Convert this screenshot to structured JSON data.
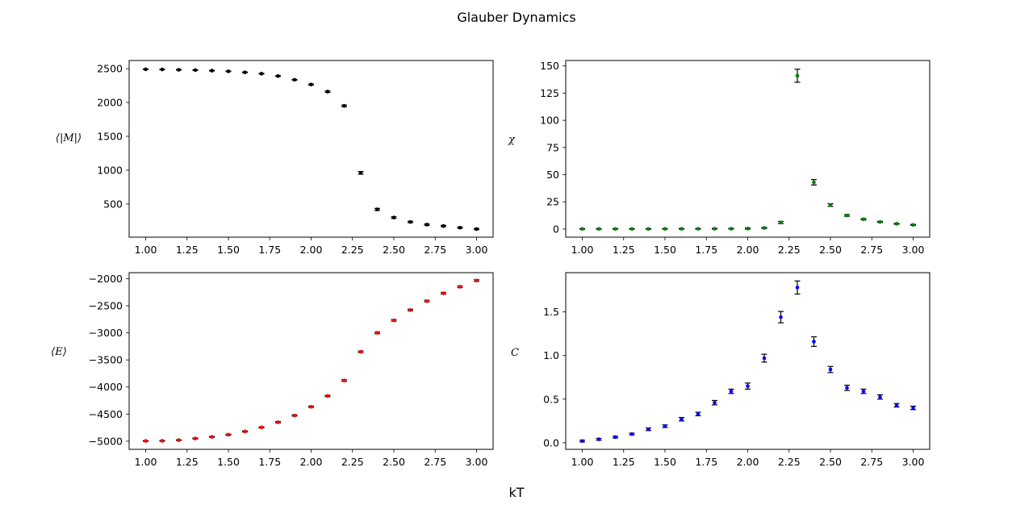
{
  "figure": {
    "title": "Glauber Dynamics",
    "xlabel": "kT"
  },
  "chart_data": [
    {
      "type": "scatter",
      "panel": "top-left",
      "ylabel": "⟨|M|⟩",
      "color": "#000000",
      "x": [
        1.0,
        1.1,
        1.2,
        1.3,
        1.4,
        1.5,
        1.6,
        1.7,
        1.8,
        1.9,
        2.0,
        2.1,
        2.2,
        2.3,
        2.4,
        2.5,
        2.6,
        2.7,
        2.8,
        2.9,
        3.0
      ],
      "values": [
        2490,
        2488,
        2483,
        2478,
        2470,
        2460,
        2445,
        2425,
        2390,
        2335,
        2265,
        2160,
        1950,
        960,
        420,
        300,
        235,
        195,
        175,
        150,
        130
      ],
      "errors": [
        5,
        5,
        5,
        5,
        5,
        5,
        5,
        5,
        5,
        5,
        8,
        10,
        12,
        20,
        15,
        12,
        10,
        10,
        10,
        10,
        10
      ],
      "xlim": [
        0.9,
        3.1
      ],
      "ylim": [
        10,
        2620
      ],
      "xticks": [
        "1.00",
        "1.25",
        "1.50",
        "1.75",
        "2.00",
        "2.25",
        "2.50",
        "2.75",
        "3.00"
      ],
      "yticks": [
        "500",
        "1000",
        "1500",
        "2000",
        "2500"
      ]
    },
    {
      "type": "scatter",
      "panel": "top-right",
      "ylabel": "χ",
      "color": "#008000",
      "x": [
        1.0,
        1.1,
        1.2,
        1.3,
        1.4,
        1.5,
        1.6,
        1.7,
        1.8,
        1.9,
        2.0,
        2.1,
        2.2,
        2.3,
        2.4,
        2.5,
        2.6,
        2.7,
        2.8,
        2.9,
        3.0
      ],
      "values": [
        0.1,
        0.1,
        0.1,
        0.1,
        0.1,
        0.15,
        0.2,
        0.2,
        0.25,
        0.3,
        0.4,
        1.0,
        6.0,
        141,
        43,
        22,
        12.5,
        9,
        6.5,
        4.8,
        3.8
      ],
      "errors": [
        0.3,
        0.3,
        0.3,
        0.3,
        0.3,
        0.3,
        0.3,
        0.3,
        0.3,
        0.3,
        0.5,
        0.5,
        1.0,
        6.0,
        2.5,
        1.2,
        0.8,
        0.6,
        0.5,
        0.4,
        0.4
      ],
      "xlim": [
        0.9,
        3.1
      ],
      "ylim": [
        -7.5,
        155
      ],
      "xticks": [
        "1.00",
        "1.25",
        "1.50",
        "1.75",
        "2.00",
        "2.25",
        "2.50",
        "2.75",
        "3.00"
      ],
      "yticks": [
        "0",
        "25",
        "50",
        "75",
        "100",
        "125",
        "150"
      ]
    },
    {
      "type": "scatter",
      "panel": "bottom-left",
      "ylabel": "⟨E⟩",
      "color": "#ff0000",
      "x": [
        1.0,
        1.1,
        1.2,
        1.3,
        1.4,
        1.5,
        1.6,
        1.7,
        1.8,
        1.9,
        2.0,
        2.1,
        2.2,
        2.3,
        2.4,
        2.5,
        2.6,
        2.7,
        2.8,
        2.9,
        3.0
      ],
      "values": [
        -4995,
        -4993,
        -4980,
        -4950,
        -4920,
        -4880,
        -4820,
        -4745,
        -4650,
        -4525,
        -4365,
        -4165,
        -3880,
        -3350,
        -3000,
        -2770,
        -2580,
        -2415,
        -2270,
        -2150,
        -2035
      ],
      "errors": [
        6,
        6,
        6,
        8,
        8,
        10,
        10,
        10,
        12,
        12,
        12,
        12,
        15,
        15,
        15,
        15,
        15,
        15,
        15,
        15,
        15
      ],
      "xlim": [
        0.9,
        3.1
      ],
      "ylim": [
        -5150,
        -1890
      ],
      "xticks": [
        "1.00",
        "1.25",
        "1.50",
        "1.75",
        "2.00",
        "2.25",
        "2.50",
        "2.75",
        "3.00"
      ],
      "yticks": [
        "-2000",
        "-2500",
        "-3000",
        "-3500",
        "-4000",
        "-4500",
        "-5000"
      ]
    },
    {
      "type": "scatter",
      "panel": "bottom-right",
      "ylabel": "C",
      "color": "#0000ff",
      "x": [
        1.0,
        1.1,
        1.2,
        1.3,
        1.4,
        1.5,
        1.6,
        1.7,
        1.8,
        1.9,
        2.0,
        2.1,
        2.2,
        2.3,
        2.4,
        2.5,
        2.6,
        2.7,
        2.8,
        2.9,
        3.0
      ],
      "values": [
        0.02,
        0.04,
        0.065,
        0.1,
        0.155,
        0.19,
        0.27,
        0.33,
        0.46,
        0.59,
        0.65,
        0.97,
        1.44,
        1.78,
        1.16,
        0.84,
        0.63,
        0.59,
        0.525,
        0.43,
        0.4
      ],
      "errors": [
        0.01,
        0.01,
        0.01,
        0.01,
        0.015,
        0.015,
        0.02,
        0.02,
        0.025,
        0.025,
        0.035,
        0.045,
        0.065,
        0.075,
        0.055,
        0.035,
        0.03,
        0.025,
        0.025,
        0.02,
        0.02
      ],
      "xlim": [
        0.9,
        3.1
      ],
      "ylim": [
        -0.075,
        1.95
      ],
      "xticks": [
        "1.00",
        "1.25",
        "1.50",
        "1.75",
        "2.00",
        "2.25",
        "2.50",
        "2.75",
        "3.00"
      ],
      "yticks": [
        "0.0",
        "0.5",
        "1.0",
        "1.5"
      ]
    }
  ]
}
